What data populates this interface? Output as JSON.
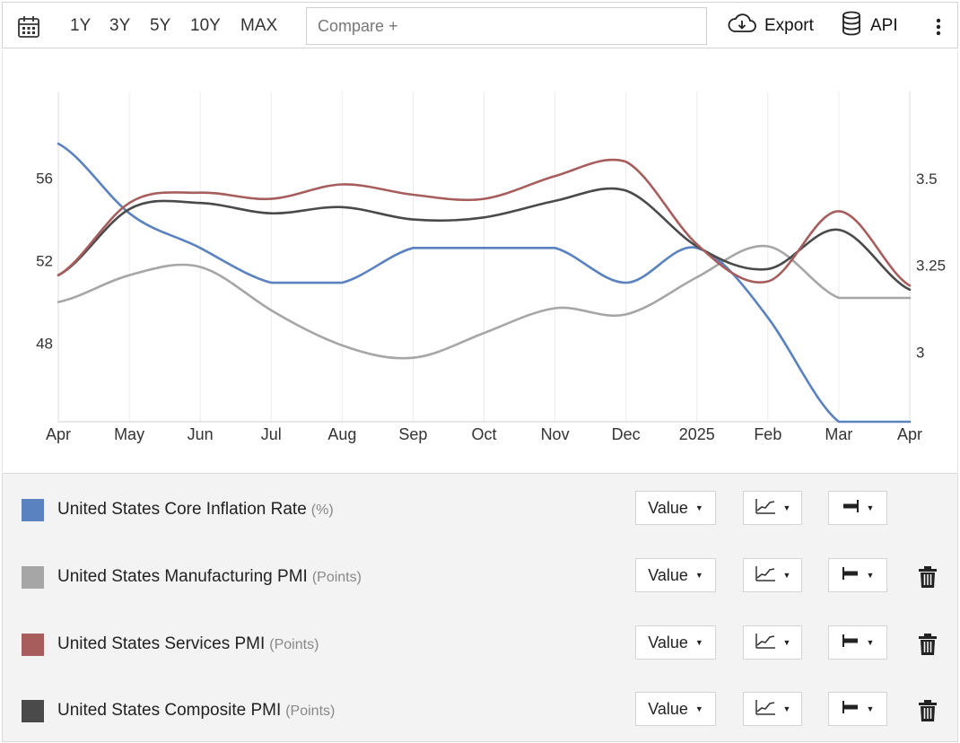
{
  "toolbar": {
    "ranges": [
      "1Y",
      "3Y",
      "5Y",
      "10Y",
      "MAX"
    ],
    "compare_placeholder": "Compare +",
    "export_label": "Export",
    "api_label": "API",
    "icons": [
      "calendar-icon",
      "cloud-download-icon",
      "database-icon",
      "more-vertical-icon"
    ]
  },
  "chart_data": {
    "type": "line",
    "x": [
      "Apr",
      "May",
      "Jun",
      "Jul",
      "Aug",
      "Sep",
      "Oct",
      "Nov",
      "Dec",
      "2025",
      "Feb",
      "Mar",
      "Apr"
    ],
    "left_axis": {
      "ticks": [
        "48",
        "52",
        "56"
      ],
      "range": [
        44.2,
        60.2
      ]
    },
    "right_axis": {
      "ticks": [
        "3",
        "3.25",
        "3.5"
      ],
      "range": [
        2.8,
        3.75
      ]
    },
    "grid": true,
    "series": [
      {
        "name": "United States Core Inflation Rate",
        "axis": "right",
        "color": "#5b82c0",
        "values": [
          3.6,
          3.4,
          3.3,
          3.2,
          3.2,
          3.3,
          3.3,
          3.3,
          3.2,
          3.3,
          3.1,
          2.8,
          2.8
        ]
      },
      {
        "name": "United States Manufacturing PMI",
        "axis": "left",
        "color": "#a6a6a6",
        "values": [
          50.0,
          51.3,
          51.7,
          49.6,
          47.9,
          47.3,
          48.5,
          49.7,
          49.4,
          51.2,
          52.7,
          50.2,
          50.2
        ]
      },
      {
        "name": "United States Services PMI",
        "axis": "left",
        "color": "#a85d5d",
        "values": [
          51.3,
          54.8,
          55.3,
          55.0,
          55.7,
          55.2,
          55.0,
          56.1,
          56.8,
          52.8,
          51.0,
          54.4,
          50.8
        ]
      },
      {
        "name": "United States Composite PMI",
        "axis": "left",
        "color": "#4a4a4a",
        "values": [
          51.3,
          54.5,
          54.8,
          54.3,
          54.6,
          54.0,
          54.1,
          54.9,
          55.4,
          52.7,
          51.6,
          53.5,
          50.6
        ]
      }
    ]
  },
  "legend": [
    {
      "label": "United States Core Inflation Rate",
      "unit": "(%)",
      "color": "#5b82c0",
      "value_label": "Value",
      "axis": "right",
      "deletable": false
    },
    {
      "label": "United States Manufacturing PMI",
      "unit": "(Points)",
      "color": "#a6a6a6",
      "value_label": "Value",
      "axis": "left",
      "deletable": true
    },
    {
      "label": "United States Services PMI",
      "unit": "(Points)",
      "color": "#a85d5d",
      "value_label": "Value",
      "axis": "left",
      "deletable": true
    },
    {
      "label": "United States Composite PMI",
      "unit": "(Points)",
      "color": "#4a4a4a",
      "value_label": "Value",
      "axis": "left",
      "deletable": true
    }
  ]
}
